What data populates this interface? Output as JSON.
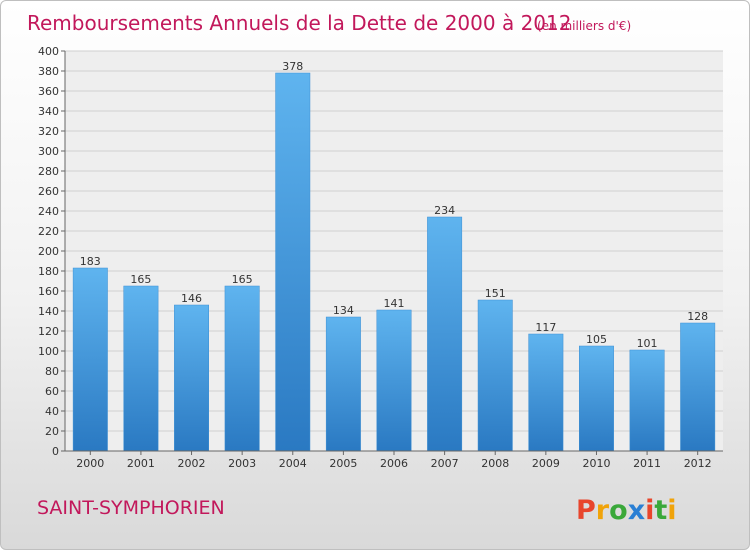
{
  "chart_data": {
    "type": "bar",
    "title": "Remboursements Annuels de la Dette de 2000 à 2012",
    "subtitle": "(en milliers d'€)",
    "categories": [
      "2000",
      "2001",
      "2002",
      "2003",
      "2004",
      "2005",
      "2006",
      "2007",
      "2008",
      "2009",
      "2010",
      "2011",
      "2012"
    ],
    "values": [
      183,
      165,
      146,
      165,
      378,
      134,
      141,
      234,
      151,
      117,
      105,
      101,
      128
    ],
    "ylim": [
      0,
      400
    ],
    "ytick_step": 20,
    "grid": true,
    "bar_color": "#4a9fdf"
  },
  "footer": {
    "town": "SAINT-SYMPHORIEN",
    "logo": "Proxiti",
    "logo_colors": [
      "#e8452c",
      "#f0a30a",
      "#3aa83a",
      "#2a7fd4",
      "#e8452c",
      "#3aa83a",
      "#f0a30a"
    ]
  }
}
